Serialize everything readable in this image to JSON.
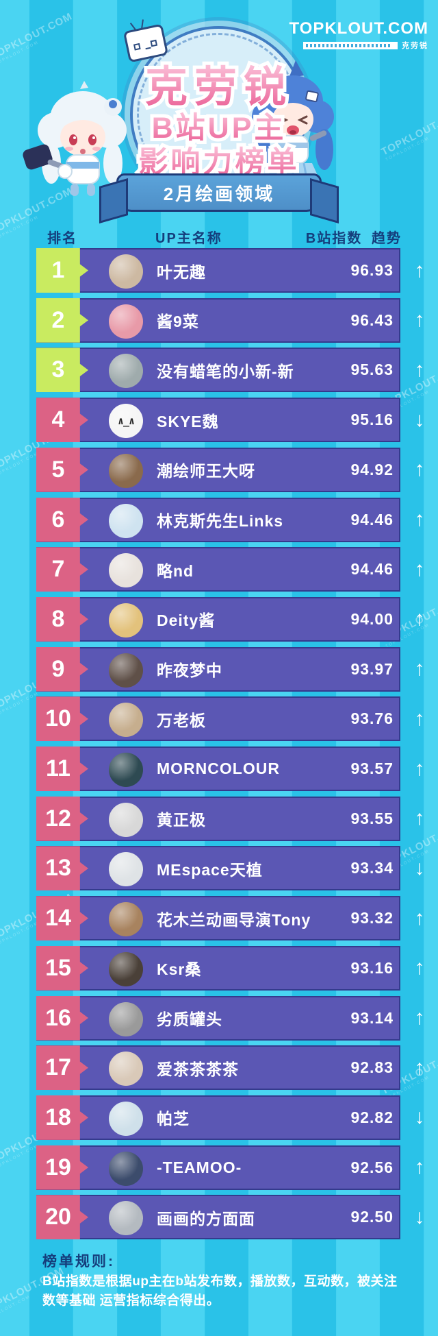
{
  "brand": {
    "logo": "TOPKLOUT.COM",
    "logo_cn": "克劳锐"
  },
  "header": {
    "title_line1": "克劳锐",
    "title_line2": "B站UP主",
    "title_line3": "影响力榜单",
    "period_badge": "2月绘画领域"
  },
  "watermark": {
    "text": "TOPKLOUT.COM"
  },
  "leaderboard": {
    "headers": {
      "rank": "排名",
      "name": "UP主名称",
      "score": "B站指数",
      "trend": "趋势"
    },
    "rows": [
      {
        "rank": "1",
        "name": "叶无趣",
        "score": "96.93",
        "trend": "up",
        "avatar_color": "#cdb9a2"
      },
      {
        "rank": "2",
        "name": "酱9菜",
        "score": "96.43",
        "trend": "up",
        "avatar_color": "#e89aa8"
      },
      {
        "rank": "3",
        "name": "没有蜡笔的小新-新",
        "score": "95.63",
        "trend": "up",
        "avatar_color": "#9fabac"
      },
      {
        "rank": "4",
        "name": "SKYE魏",
        "score": "95.16",
        "trend": "down",
        "avatar_color": "#f5f5f5",
        "avatar_text": "∧_∧"
      },
      {
        "rank": "5",
        "name": "潮绘师王大呀",
        "score": "94.92",
        "trend": "up",
        "avatar_color": "#8a6a4c"
      },
      {
        "rank": "6",
        "name": "林克斯先生Links",
        "score": "94.46",
        "trend": "up",
        "avatar_color": "#cfe3f0"
      },
      {
        "rank": "7",
        "name": "略nd",
        "score": "94.46",
        "trend": "up",
        "avatar_color": "#e8e2dd"
      },
      {
        "rank": "8",
        "name": "Deity酱",
        "score": "94.00",
        "trend": "up",
        "avatar_color": "#e3c27c"
      },
      {
        "rank": "9",
        "name": "昨夜梦中",
        "score": "93.97",
        "trend": "up",
        "avatar_color": "#5f5048"
      },
      {
        "rank": "10",
        "name": "万老板",
        "score": "93.76",
        "trend": "up",
        "avatar_color": "#c6ae8e"
      },
      {
        "rank": "11",
        "name": "MORNCOLOUR",
        "score": "93.57",
        "trend": "up",
        "avatar_color": "#2e4a52"
      },
      {
        "rank": "12",
        "name": "黄正极",
        "score": "93.55",
        "trend": "up",
        "avatar_color": "#d8d8d8"
      },
      {
        "rank": "13",
        "name": "MEspace天植",
        "score": "93.34",
        "trend": "down",
        "avatar_color": "#dfe3e6"
      },
      {
        "rank": "14",
        "name": "花木兰动画导演Tony",
        "score": "93.32",
        "trend": "up",
        "avatar_color": "#a8835f"
      },
      {
        "rank": "15",
        "name": "Ksr桑",
        "score": "93.16",
        "trend": "up",
        "avatar_color": "#4a4038"
      },
      {
        "rank": "16",
        "name": "劣质罐头",
        "score": "93.14",
        "trend": "up",
        "avatar_color": "#9a9a9a"
      },
      {
        "rank": "17",
        "name": "爱茶茶茶茶",
        "score": "92.83",
        "trend": "up",
        "avatar_color": "#d9c9b8"
      },
      {
        "rank": "18",
        "name": "帕芝",
        "score": "92.82",
        "trend": "down",
        "avatar_color": "#cfe0ea"
      },
      {
        "rank": "19",
        "name": "-TEAMOO-",
        "score": "92.56",
        "trend": "up",
        "avatar_color": "#3c4c6c"
      },
      {
        "rank": "20",
        "name": "画画的方面面",
        "score": "92.50",
        "trend": "down",
        "avatar_color": "#b4bac0"
      }
    ]
  },
  "footer": {
    "heading": "榜单规则:",
    "body": "B站指数是根据up主在b站发布数，播放数，互动数，被关注数等基础 运营指标综合得出。"
  },
  "colors": {
    "bg_a": "#2ac2e8",
    "bg_b": "#4ad4f2",
    "bar": "#5b57b4",
    "bar_border": "#343b8d",
    "badge_green": "#c9eb60",
    "badge_pink": "#dc6285",
    "navy": "#153e7c",
    "title_pink_1": "#fbc0d8",
    "title_pink_2": "#ea5f95",
    "ribbon": "#4e8fc8",
    "ribbon_dark": "#3a74b4",
    "ribbon_border": "#1e3a78",
    "circle_fill": "#d7eef9",
    "circle_edge": "#3f7cc2"
  }
}
